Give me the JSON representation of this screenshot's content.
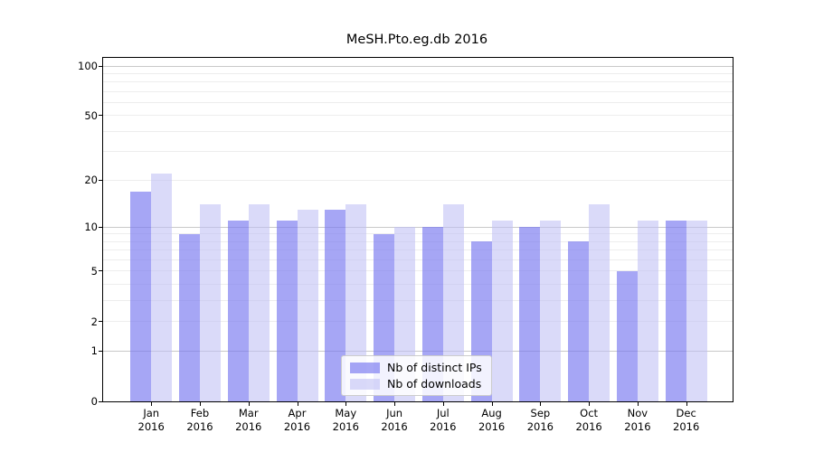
{
  "title": "MeSH.Pto.eg.db 2016",
  "chart_data": {
    "type": "bar",
    "title": "MeSH.Pto.eg.db 2016",
    "categories": [
      "Jan",
      "Feb",
      "Mar",
      "Apr",
      "May",
      "Jun",
      "Jul",
      "Aug",
      "Sep",
      "Oct",
      "Nov",
      "Dec"
    ],
    "year_label": "2016",
    "series": [
      {
        "name": "Nb of distinct IPs",
        "color": "rgba(120,120,240,0.66)",
        "values": [
          17,
          9,
          11,
          11,
          13,
          9,
          10,
          8,
          10,
          8,
          5,
          11
        ]
      },
      {
        "name": "Nb of downloads",
        "color": "rgba(192,192,244,0.58)",
        "values": [
          22,
          14,
          14,
          13,
          14,
          10,
          14,
          11,
          11,
          14,
          11,
          11
        ]
      }
    ],
    "yscale": "log1p",
    "ylim": [
      0,
      113
    ],
    "ytick_values": [
      0,
      1,
      2,
      5,
      10,
      20,
      50,
      100
    ],
    "grid_minor_values": [
      2,
      3,
      4,
      5,
      6,
      7,
      8,
      9,
      20,
      30,
      40,
      50,
      60,
      70,
      80,
      90
    ],
    "grid_major_values": [
      1,
      10,
      100
    ],
    "grid_on": true,
    "legend_position": "lower center",
    "colors": {
      "grid_minor": "#ededed",
      "grid_major": "#c9c9c9",
      "axis": "#000000",
      "background": "#ffffff"
    }
  }
}
